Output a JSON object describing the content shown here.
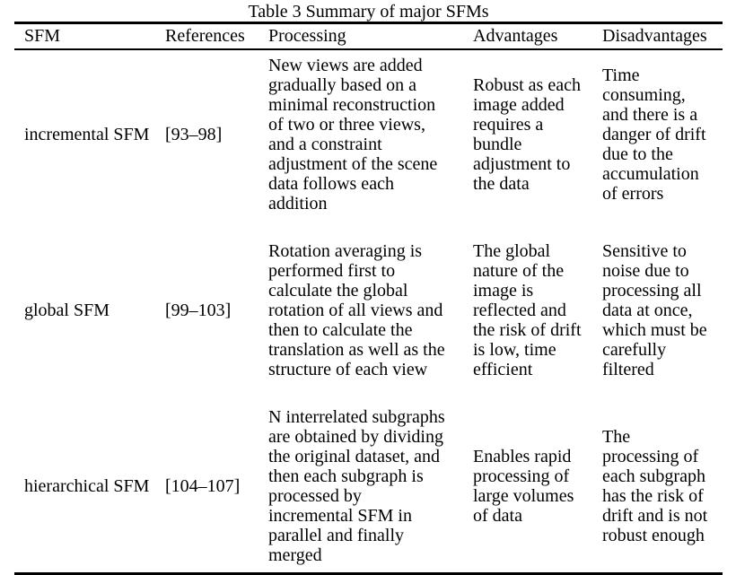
{
  "title": "Table 3 Summary of major SFMs",
  "table": {
    "columns": [
      "SFM",
      "References",
      "Processing",
      "Advantages",
      "Disadvantages"
    ],
    "rows": [
      {
        "sfm": "incremental SFM",
        "references": "[93–98]",
        "processing": "New views are added\ngradually based on a\nminimal reconstruction\nof two or three views,\nand a constraint\nadjustment of the scene\ndata follows each\naddition",
        "advantages": "Robust as each\nimage added\nrequires a\nbundle\nadjustment to\nthe data",
        "disadvantages": "Time\nconsuming,\nand there is a\ndanger of drift\ndue to the\naccumulation\nof errors"
      },
      {
        "sfm": "global SFM",
        "references": "[99–103]",
        "processing": "Rotation averaging is\nperformed first to\ncalculate the global\nrotation of all views and\nthen to calculate the\ntranslation as well as the\nstructure of each view",
        "advantages": "The global\nnature of the\nimage is\nreflected and\nthe risk of drift\nis low, time\nefficient",
        "disadvantages": "Sensitive to\nnoise due to\nprocessing all\ndata at once,\nwhich must be\ncarefully\nfiltered"
      },
      {
        "sfm": "hierarchical SFM",
        "references": "[104–107]",
        "processing": "N interrelated subgraphs\nare obtained by dividing\nthe original dataset, and\nthen each subgraph is\nprocessed by\nincremental SFM in\nparallel and finally\nmerged",
        "advantages": "Enables rapid\nprocessing of\nlarge volumes\nof data",
        "disadvantages": "The\nprocessing of\neach subgraph\nhas the risk of\ndrift and is not\nrobust enough"
      }
    ]
  }
}
